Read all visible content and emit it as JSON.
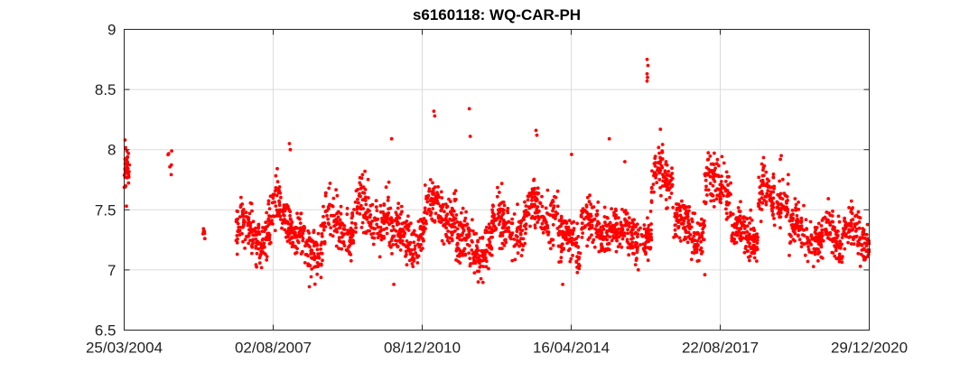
{
  "chart_data": {
    "type": "scatter",
    "title": "s6160118: WQ-CAR-PH",
    "xlabel": "",
    "ylabel": "",
    "ylim": [
      6.5,
      9
    ],
    "xlim": [
      "25/03/2004",
      "29/12/2020"
    ],
    "y_ticks": [
      "6.5",
      "7",
      "7.5",
      "8",
      "8.5",
      "9"
    ],
    "x_ticks": [
      "25/03/2004",
      "02/08/2007",
      "08/12/2010",
      "16/04/2014",
      "22/08/2017",
      "29/12/2020"
    ],
    "grid": true,
    "marker_color": "#ff0000",
    "series": [
      {
        "name": "WQ-CAR-PH",
        "description": "Approximate daily pH readings (dense scatter), reconstructed by period",
        "periods": [
          {
            "start": 2004.22,
            "end": 2004.35,
            "mean": 7.8,
            "spread": 0.15,
            "count": 40
          },
          {
            "start": 2005.2,
            "end": 2005.3,
            "mean": 7.85,
            "spread": 0.12,
            "count": 6
          },
          {
            "start": 2006.0,
            "end": 2006.05,
            "mean": 7.28,
            "spread": 0.06,
            "count": 6
          },
          {
            "start": 2006.75,
            "end": 2007.5,
            "mean": 7.32,
            "spread": 0.18,
            "count": 150
          },
          {
            "start": 2007.5,
            "end": 2008.0,
            "mean": 7.45,
            "spread": 0.2,
            "count": 100
          },
          {
            "start": 2008.0,
            "end": 2008.7,
            "mean": 7.22,
            "spread": 0.18,
            "count": 130
          },
          {
            "start": 2008.7,
            "end": 2009.4,
            "mean": 7.35,
            "spread": 0.2,
            "count": 120
          },
          {
            "start": 2009.4,
            "end": 2010.2,
            "mean": 7.45,
            "spread": 0.2,
            "count": 140
          },
          {
            "start": 2010.2,
            "end": 2011.0,
            "mean": 7.28,
            "spread": 0.16,
            "count": 150
          },
          {
            "start": 2011.0,
            "end": 2011.7,
            "mean": 7.5,
            "spread": 0.2,
            "count": 130
          },
          {
            "start": 2011.7,
            "end": 2012.5,
            "mean": 7.2,
            "spread": 0.2,
            "count": 160
          },
          {
            "start": 2012.5,
            "end": 2013.3,
            "mean": 7.35,
            "spread": 0.18,
            "count": 150
          },
          {
            "start": 2013.3,
            "end": 2014.0,
            "mean": 7.5,
            "spread": 0.18,
            "count": 120
          },
          {
            "start": 2014.0,
            "end": 2014.5,
            "mean": 7.2,
            "spread": 0.18,
            "count": 100
          },
          {
            "start": 2014.5,
            "end": 2015.3,
            "mean": 7.35,
            "spread": 0.16,
            "count": 150
          },
          {
            "start": 2015.3,
            "end": 2016.1,
            "mean": 7.28,
            "spread": 0.16,
            "count": 150
          },
          {
            "start": 2016.1,
            "end": 2016.6,
            "mean": 7.75,
            "spread": 0.18,
            "count": 90
          },
          {
            "start": 2016.6,
            "end": 2017.3,
            "mean": 7.35,
            "spread": 0.18,
            "count": 140
          },
          {
            "start": 2017.3,
            "end": 2017.9,
            "mean": 7.7,
            "spread": 0.18,
            "count": 110
          },
          {
            "start": 2017.9,
            "end": 2018.5,
            "mean": 7.3,
            "spread": 0.16,
            "count": 130
          },
          {
            "start": 2018.5,
            "end": 2019.2,
            "mean": 7.6,
            "spread": 0.2,
            "count": 130
          },
          {
            "start": 2019.2,
            "end": 2019.9,
            "mean": 7.3,
            "spread": 0.16,
            "count": 130
          },
          {
            "start": 2019.9,
            "end": 2020.4,
            "mean": 7.25,
            "spread": 0.16,
            "count": 90
          },
          {
            "start": 2020.4,
            "end": 2021.0,
            "mean": 7.3,
            "spread": 0.16,
            "count": 110
          }
        ],
        "outliers": [
          {
            "x": 2004.25,
            "y": 8.08
          },
          {
            "x": 2004.28,
            "y": 7.53
          },
          {
            "x": 2007.95,
            "y": 8.05
          },
          {
            "x": 2007.97,
            "y": 8.0
          },
          {
            "x": 2008.4,
            "y": 6.86
          },
          {
            "x": 2009.65,
            "y": 7.82
          },
          {
            "x": 2010.25,
            "y": 8.09
          },
          {
            "x": 2010.3,
            "y": 6.88
          },
          {
            "x": 2011.2,
            "y": 8.32
          },
          {
            "x": 2011.22,
            "y": 8.28
          },
          {
            "x": 2012.0,
            "y": 8.34
          },
          {
            "x": 2012.02,
            "y": 8.11
          },
          {
            "x": 2012.2,
            "y": 6.9
          },
          {
            "x": 2013.5,
            "y": 8.16
          },
          {
            "x": 2013.52,
            "y": 8.12
          },
          {
            "x": 2014.1,
            "y": 6.88
          },
          {
            "x": 2014.3,
            "y": 7.96
          },
          {
            "x": 2015.15,
            "y": 8.09
          },
          {
            "x": 2015.5,
            "y": 7.9
          },
          {
            "x": 2016.0,
            "y": 8.75
          },
          {
            "x": 2016.02,
            "y": 8.7
          },
          {
            "x": 2016.0,
            "y": 8.63
          },
          {
            "x": 2016.01,
            "y": 8.6
          },
          {
            "x": 2016.0,
            "y": 8.57
          },
          {
            "x": 2016.3,
            "y": 8.17
          },
          {
            "x": 2017.3,
            "y": 6.96
          },
          {
            "x": 2019.0,
            "y": 7.92
          },
          {
            "x": 2019.02,
            "y": 7.95
          },
          {
            "x": 2020.8,
            "y": 7.03
          }
        ]
      }
    ]
  }
}
